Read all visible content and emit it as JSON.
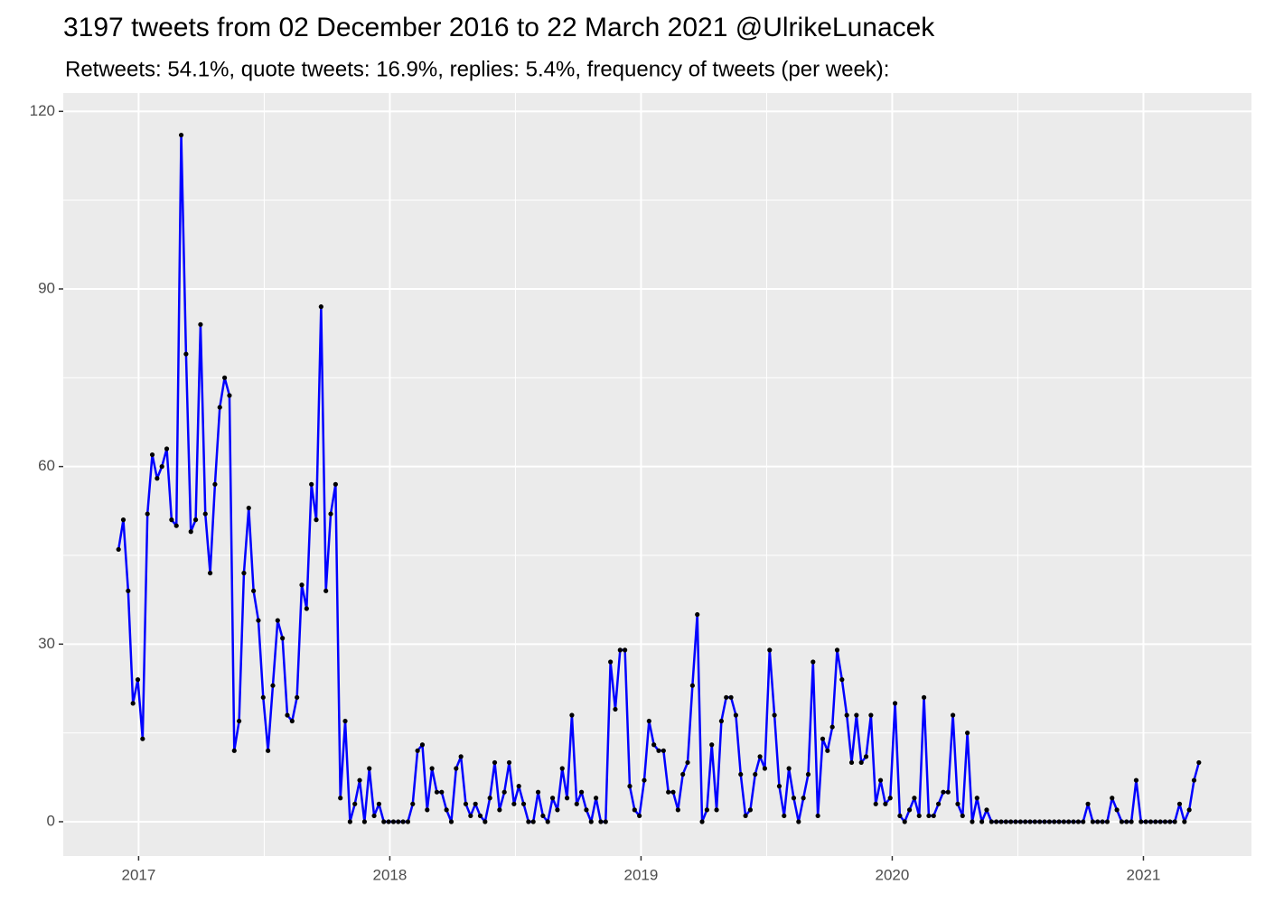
{
  "chart_data": {
    "type": "line",
    "title": "3197 tweets from 02 December 2016 to 22 March 2021 @UlrikeLunacek",
    "subtitle": "Retweets: 54.1%, quote tweets: 16.9%, replies: 5.4%, frequency of tweets (per week):",
    "color": "#0000ff",
    "point_color": "#000000",
    "grid": true,
    "xlim": [
      2016.7,
      2021.43
    ],
    "ylim": [
      -5.8,
      123.1
    ],
    "xticks": [
      2017,
      2018,
      2019,
      2020,
      2021
    ],
    "yticks": [
      0,
      30,
      60,
      90,
      120
    ],
    "xminorticks": [
      2017.5,
      2018.5,
      2019.5,
      2020.5
    ],
    "yminorticks": [
      15,
      45,
      75,
      105
    ],
    "x": [
      2016.92,
      2016.9392,
      2016.9584,
      2016.9776,
      2016.9968,
      2017.016,
      2017.0352,
      2017.0544,
      2017.0736,
      2017.0928,
      2017.112,
      2017.1312,
      2017.1504,
      2017.1696,
      2017.1888,
      2017.208,
      2017.2272,
      2017.2464,
      2017.2656,
      2017.2848,
      2017.304,
      2017.3232,
      2017.3424,
      2017.3616,
      2017.3808,
      2017.4,
      2017.4192,
      2017.4384,
      2017.4576,
      2017.4768,
      2017.496,
      2017.5152,
      2017.5344,
      2017.5536,
      2017.5728,
      2017.592,
      2017.6112,
      2017.6304,
      2017.6496,
      2017.6688,
      2017.688,
      2017.7072,
      2017.7264,
      2017.7456,
      2017.7648,
      2017.784,
      2017.8032,
      2017.8224,
      2017.8416,
      2017.8608,
      2017.88,
      2017.8992,
      2017.9184,
      2017.9376,
      2017.9568,
      2017.976,
      2017.9952,
      2018.0144,
      2018.0336,
      2018.0528,
      2018.072,
      2018.0912,
      2018.1104,
      2018.1296,
      2018.1488,
      2018.168,
      2018.1872,
      2018.2064,
      2018.2256,
      2018.2448,
      2018.264,
      2018.2832,
      2018.3024,
      2018.3216,
      2018.3408,
      2018.36,
      2018.3792,
      2018.3984,
      2018.4176,
      2018.4368,
      2018.456,
      2018.4752,
      2018.4944,
      2018.5136,
      2018.5328,
      2018.552,
      2018.5712,
      2018.5904,
      2018.6096,
      2018.6288,
      2018.648,
      2018.6672,
      2018.6864,
      2018.7056,
      2018.7248,
      2018.744,
      2018.7632,
      2018.7824,
      2018.8016,
      2018.8208,
      2018.84,
      2018.8592,
      2018.8784,
      2018.8976,
      2018.9168,
      2018.936,
      2018.9552,
      2018.9744,
      2018.9936,
      2019.0128,
      2019.032,
      2019.0512,
      2019.0704,
      2019.0896,
      2019.1088,
      2019.128,
      2019.1472,
      2019.1664,
      2019.1856,
      2019.2048,
      2019.224,
      2019.2432,
      2019.2624,
      2019.2816,
      2019.3008,
      2019.32,
      2019.3392,
      2019.3584,
      2019.3776,
      2019.3968,
      2019.416,
      2019.4352,
      2019.4544,
      2019.4736,
      2019.4928,
      2019.512,
      2019.5312,
      2019.5504,
      2019.5696,
      2019.5888,
      2019.608,
      2019.6272,
      2019.6464,
      2019.6656,
      2019.6848,
      2019.704,
      2019.7232,
      2019.7424,
      2019.7616,
      2019.7808,
      2019.8,
      2019.8192,
      2019.8384,
      2019.8576,
      2019.8768,
      2019.896,
      2019.9152,
      2019.9344,
      2019.9536,
      2019.9728,
      2019.992,
      2020.0112,
      2020.0304,
      2020.0496,
      2020.0688,
      2020.088,
      2020.1072,
      2020.1264,
      2020.1456,
      2020.1648,
      2020.184,
      2020.2032,
      2020.2224,
      2020.2416,
      2020.2608,
      2020.28,
      2020.2992,
      2020.3184,
      2020.3376,
      2020.3568,
      2020.376,
      2020.3952,
      2020.4144,
      2020.4336,
      2020.4528,
      2020.472,
      2020.4912,
      2020.5104,
      2020.5296,
      2020.5488,
      2020.568,
      2020.5872,
      2020.6064,
      2020.6256,
      2020.6448,
      2020.664,
      2020.6832,
      2020.7024,
      2020.7216,
      2020.7408,
      2020.76,
      2020.7792,
      2020.7984,
      2020.8176,
      2020.8368,
      2020.856,
      2020.8752,
      2020.8944,
      2020.9136,
      2020.9328,
      2020.952,
      2020.9712,
      2020.9904,
      2021.0096,
      2021.0288,
      2021.048,
      2021.0672,
      2021.0864,
      2021.1056,
      2021.1248,
      2021.144,
      2021.1632,
      2021.1824,
      2021.2016,
      2021.2208
    ],
    "values": [
      46,
      51,
      39,
      20,
      24,
      14,
      52,
      62,
      58,
      60,
      63,
      51,
      50,
      116,
      79,
      49,
      51,
      84,
      52,
      42,
      57,
      70,
      75,
      72,
      12,
      17,
      42,
      53,
      39,
      34,
      21,
      12,
      23,
      34,
      31,
      18,
      17,
      21,
      40,
      36,
      57,
      51,
      87,
      39,
      52,
      57,
      4,
      17,
      0,
      3,
      7,
      0,
      9,
      1,
      3,
      0,
      0,
      0,
      0,
      0,
      0,
      3,
      12,
      13,
      2,
      9,
      5,
      5,
      2,
      0,
      9,
      11,
      3,
      1,
      3,
      1,
      0,
      4,
      10,
      2,
      5,
      10,
      3,
      6,
      3,
      0,
      0,
      5,
      1,
      0,
      4,
      2,
      9,
      4,
      18,
      3,
      5,
      2,
      0,
      4,
      0,
      0,
      27,
      19,
      29,
      29,
      6,
      2,
      1,
      7,
      17,
      13,
      12,
      12,
      5,
      5,
      2,
      8,
      10,
      23,
      35,
      0,
      2,
      13,
      2,
      17,
      21,
      21,
      18,
      8,
      1,
      2,
      8,
      11,
      9,
      29,
      18,
      6,
      1,
      9,
      4,
      0,
      4,
      8,
      27,
      1,
      14,
      12,
      16,
      29,
      24,
      18,
      10,
      18,
      10,
      11,
      18,
      3,
      7,
      3,
      4,
      20,
      1,
      0,
      2,
      4,
      1,
      21,
      1,
      1,
      3,
      5,
      5,
      18,
      3,
      1,
      15,
      0,
      4,
      0,
      2,
      0,
      0,
      0,
      0,
      0,
      0,
      0,
      0,
      0,
      0,
      0,
      0,
      0,
      0,
      0,
      0,
      0,
      0,
      0,
      0,
      3,
      0,
      0,
      0,
      0,
      4,
      2,
      0,
      0,
      0,
      7,
      0,
      0,
      0,
      0,
      0,
      0,
      0,
      0,
      3,
      0,
      2,
      7,
      10
    ]
  }
}
